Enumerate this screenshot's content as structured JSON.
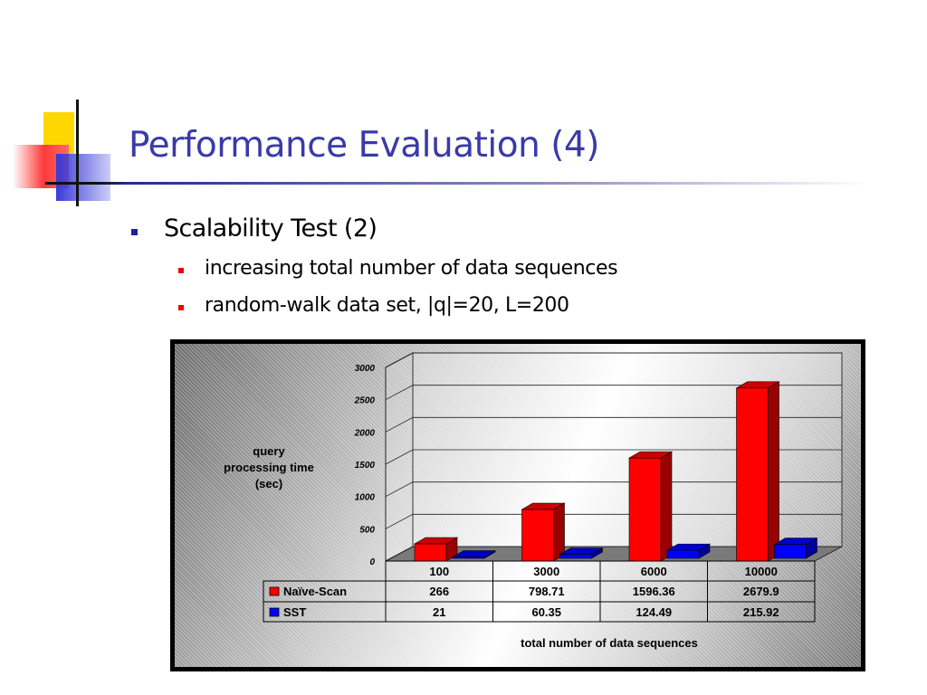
{
  "slide": {
    "title": "Performance Evaluation (4)",
    "bullet": "Scalability Test (2)",
    "sub_bullets": [
      "increasing total number of data sequences",
      "random-walk data set, |q|=20, L=200"
    ]
  },
  "colors": {
    "title": "#3a3aaa",
    "naive_scan": "#ff0000",
    "sst": "#0000ff"
  },
  "chart_data": {
    "type": "bar",
    "categories": [
      "100",
      "3000",
      "6000",
      "10000"
    ],
    "series": [
      {
        "name": "Naïve-Scan",
        "values": [
          "266",
          "798.71",
          "1596.36",
          "2679.9"
        ]
      },
      {
        "name": "SST",
        "values": [
          "21",
          "60.35",
          "124.49",
          "215.92"
        ]
      }
    ],
    "ylabel": "query processing time (sec)",
    "ylabel_lines": [
      "query",
      "processing time",
      "(sec)"
    ],
    "xlabel": "total number of data sequences",
    "ylim": [
      0,
      3000
    ],
    "yticks": [
      "0",
      "500",
      "1000",
      "1500",
      "2000",
      "2500",
      "3000"
    ],
    "grid": true,
    "legend": "data-table"
  }
}
